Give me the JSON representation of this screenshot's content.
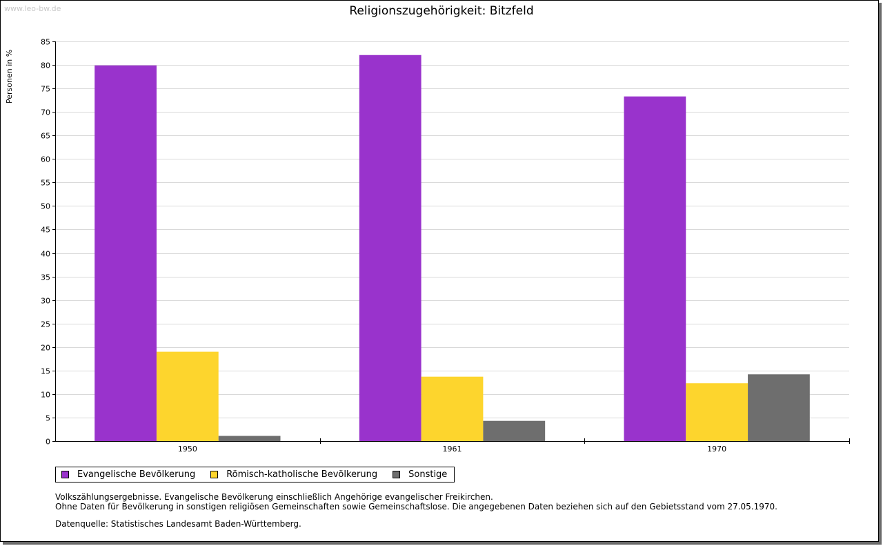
{
  "watermark": "www.leo-bw.de",
  "chart_data": {
    "type": "bar",
    "title": "Religionszugehörigkeit: Bitzfeld",
    "ylabel": "Personen in %",
    "xlabel": "",
    "categories": [
      "1950",
      "1961",
      "1970"
    ],
    "ylim": [
      0,
      85
    ],
    "yticks": [
      0,
      5,
      10,
      15,
      20,
      25,
      30,
      35,
      40,
      45,
      50,
      55,
      60,
      65,
      70,
      75,
      80,
      85
    ],
    "grid": true,
    "legend_position": "bottom-left",
    "series": [
      {
        "name": "Evangelische Bevölkerung",
        "color": "#9933cc",
        "values": [
          79.9,
          82.1,
          73.3
        ]
      },
      {
        "name": "Römisch-katholische Bevölkerung",
        "color": "#fdd52d",
        "values": [
          19.0,
          13.7,
          12.3
        ]
      },
      {
        "name": "Sonstige",
        "color": "#6e6e6e",
        "values": [
          1.1,
          4.3,
          14.2
        ]
      }
    ]
  },
  "notes": {
    "line1": "Volkszählungsergebnisse. Evangelische Bevölkerung einschließlich Angehörige evangelischer Freikirchen.",
    "line2": "Ohne Daten für Bevölkerung in sonstigen religiösen Gemeinschaften sowie Gemeinschaftslose. Die angegebenen Daten beziehen sich auf den Gebietsstand vom 27.05.1970.",
    "source": "Datenquelle: Statistisches Landesamt Baden-Württemberg."
  }
}
